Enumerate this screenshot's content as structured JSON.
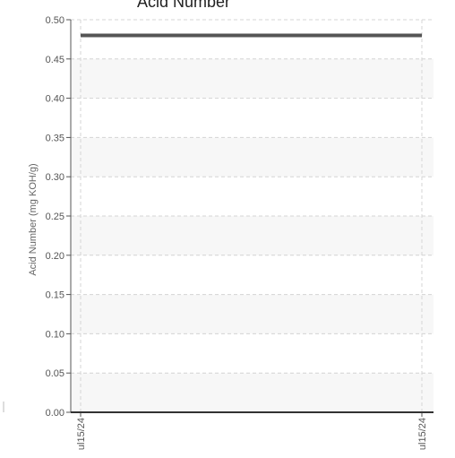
{
  "chart_data": {
    "type": "line",
    "title": "Acid Number",
    "ylabel": "Acid Number (mg KOH/g)",
    "xlabel": "",
    "ylim": [
      0,
      0.5
    ],
    "y_ticks": [
      "0.00",
      "0.05",
      "0.10",
      "0.15",
      "0.20",
      "0.25",
      "0.30",
      "0.35",
      "0.40",
      "0.45",
      "0.50"
    ],
    "x": [
      "ul15/24",
      "ul15/24"
    ],
    "series": [
      {
        "values": [
          0.48,
          0.48
        ],
        "color": "#555555"
      }
    ],
    "grid": true,
    "band_colors": [
      "#ffffff",
      "#f7f7f7"
    ]
  }
}
